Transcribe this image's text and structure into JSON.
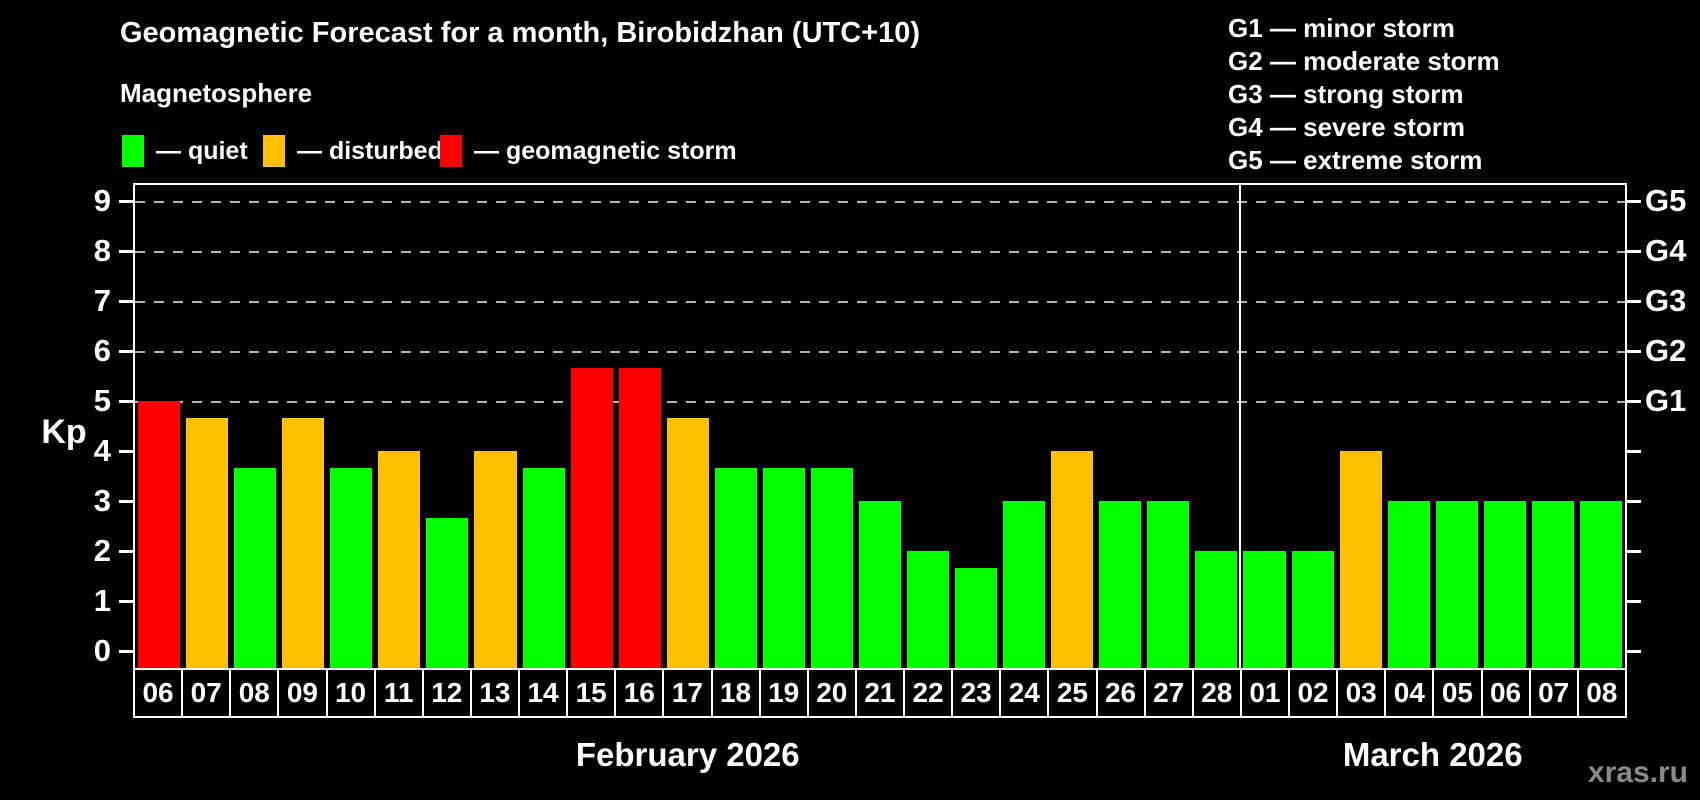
{
  "title": "Geomagnetic Forecast for a month, Birobidzhan (UTC+10)",
  "subtitle": "Magnetosphere",
  "watermark": "xras.ru",
  "legend": {
    "items": [
      {
        "key": "quiet",
        "label": "— quiet",
        "color": "#00FF00"
      },
      {
        "key": "disturbed",
        "label": "— disturbed",
        "color": "#FFC000"
      },
      {
        "key": "storm",
        "label": "— geomagnetic storm",
        "color": "#FF0000"
      }
    ]
  },
  "g_legend": [
    "G1 — minor storm",
    "G2 — moderate storm",
    "G3 — strong storm",
    "G4 — severe storm",
    "G5 — extreme storm"
  ],
  "chart_data": {
    "type": "bar",
    "title": "Geomagnetic Forecast for a month, Birobidzhan (UTC+10)",
    "subtitle": "Magnetosphere",
    "ylabel": "Kp",
    "ylim": [
      0,
      9
    ],
    "yticks": [
      0,
      1,
      2,
      3,
      4,
      5,
      6,
      7,
      8,
      9
    ],
    "gridlines_at": [
      5,
      6,
      7,
      8,
      9
    ],
    "grid": "dashed",
    "legend_position": "top",
    "right_axis_labels": [
      {
        "label": "G1",
        "kp": 5
      },
      {
        "label": "G2",
        "kp": 6
      },
      {
        "label": "G3",
        "kp": 7
      },
      {
        "label": "G4",
        "kp": 8
      },
      {
        "label": "G5",
        "kp": 9
      }
    ],
    "colors": {
      "quiet": "#00FF00",
      "disturbed": "#FFC000",
      "storm": "#FF0000"
    },
    "months": [
      {
        "label": "February 2026",
        "count": 23
      },
      {
        "label": "March 2026",
        "count": 8
      }
    ],
    "bars": [
      {
        "day": "06",
        "kp": 5.0,
        "status": "storm"
      },
      {
        "day": "07",
        "kp": 4.67,
        "status": "disturbed"
      },
      {
        "day": "08",
        "kp": 3.67,
        "status": "quiet"
      },
      {
        "day": "09",
        "kp": 4.67,
        "status": "disturbed"
      },
      {
        "day": "10",
        "kp": 3.67,
        "status": "quiet"
      },
      {
        "day": "11",
        "kp": 4.0,
        "status": "disturbed"
      },
      {
        "day": "12",
        "kp": 2.67,
        "status": "quiet"
      },
      {
        "day": "13",
        "kp": 4.0,
        "status": "disturbed"
      },
      {
        "day": "14",
        "kp": 3.67,
        "status": "quiet"
      },
      {
        "day": "15",
        "kp": 5.67,
        "status": "storm"
      },
      {
        "day": "16",
        "kp": 5.67,
        "status": "storm"
      },
      {
        "day": "17",
        "kp": 4.67,
        "status": "disturbed"
      },
      {
        "day": "18",
        "kp": 3.67,
        "status": "quiet"
      },
      {
        "day": "19",
        "kp": 3.67,
        "status": "quiet"
      },
      {
        "day": "20",
        "kp": 3.67,
        "status": "quiet"
      },
      {
        "day": "21",
        "kp": 3.0,
        "status": "quiet"
      },
      {
        "day": "22",
        "kp": 2.0,
        "status": "quiet"
      },
      {
        "day": "23",
        "kp": 1.67,
        "status": "quiet"
      },
      {
        "day": "24",
        "kp": 3.0,
        "status": "quiet"
      },
      {
        "day": "25",
        "kp": 4.0,
        "status": "disturbed"
      },
      {
        "day": "26",
        "kp": 3.0,
        "status": "quiet"
      },
      {
        "day": "27",
        "kp": 3.0,
        "status": "quiet"
      },
      {
        "day": "28",
        "kp": 2.0,
        "status": "quiet"
      },
      {
        "day": "01",
        "kp": 2.0,
        "status": "quiet"
      },
      {
        "day": "02",
        "kp": 2.0,
        "status": "quiet"
      },
      {
        "day": "03",
        "kp": 4.0,
        "status": "disturbed"
      },
      {
        "day": "04",
        "kp": 3.0,
        "status": "quiet"
      },
      {
        "day": "05",
        "kp": 3.0,
        "status": "quiet"
      },
      {
        "day": "06",
        "kp": 3.0,
        "status": "quiet"
      },
      {
        "day": "07",
        "kp": 3.0,
        "status": "quiet"
      },
      {
        "day": "08",
        "kp": 3.0,
        "status": "quiet"
      }
    ]
  }
}
